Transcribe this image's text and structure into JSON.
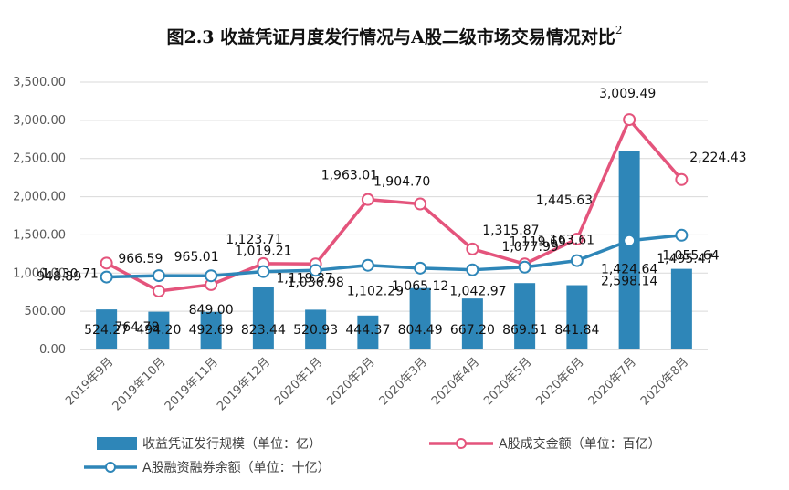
{
  "chart_data": {
    "type": "bar+line",
    "title": "图2.3 收益凭证月度发行情况与A股二级市场交易情况对比",
    "title_superscript": "2",
    "categories": [
      "2019年9月",
      "2019年10月",
      "2019年11月",
      "2019年12月",
      "2020年1月",
      "2020年2月",
      "2020年3月",
      "2020年4月",
      "2020年5月",
      "2020年6月",
      "2020年7月",
      "2020年8月"
    ],
    "ylim": [
      0,
      3500
    ],
    "yticks": [
      "0.00",
      "500.00",
      "1,000.00",
      "1,500.00",
      "2,000.00",
      "2,500.00",
      "3,000.00",
      "3,500.00"
    ],
    "series": [
      {
        "name": "收益凭证发行规模（单位：亿）",
        "kind": "bar",
        "color": "#2e86b8",
        "values": [
          524.27,
          494.2,
          492.69,
          823.44,
          520.93,
          444.37,
          804.49,
          667.2,
          869.51,
          841.84,
          2598.14,
          1055.64
        ],
        "labels": [
          "524.27",
          "494.20",
          "492.69",
          "823.44",
          "520.93",
          "444.37",
          "804.49",
          "667.20",
          "869.51",
          "841.84",
          "2,598.14",
          "1,055.64"
        ]
      },
      {
        "name": "A股成交金额（单位：百亿）",
        "kind": "line",
        "color": "#e4547c",
        "values": [
          1130.71,
          764.78,
          849.0,
          1123.71,
          1119.37,
          1963.01,
          1904.7,
          1315.87,
          1119.69,
          1445.63,
          3009.49,
          2224.43
        ],
        "labels": [
          "1,130.71",
          "764.78",
          "849.00",
          "1,123.71",
          "1,119.37",
          "1,963.01",
          "1,904.70",
          "1,315.87",
          "1,119.69",
          "1,445.63",
          "3,009.49",
          "2,224.43"
        ]
      },
      {
        "name": "A股融资融券余额（单位：十亿）",
        "kind": "line",
        "color": "#2e86b8",
        "values": [
          948.89,
          966.59,
          965.01,
          1019.21,
          1036.98,
          1102.29,
          1065.12,
          1042.97,
          1077.99,
          1163.61,
          1424.64,
          1495.47
        ],
        "labels": [
          "948.89",
          "966.59",
          "965.01",
          "1,019.21",
          "1,036.98",
          "1,102.29",
          "1,065.12",
          "1,042.97",
          "1,077.99",
          "1,163.61",
          "1,424.64",
          "1,495.47"
        ]
      }
    ],
    "legend": "bottom"
  }
}
